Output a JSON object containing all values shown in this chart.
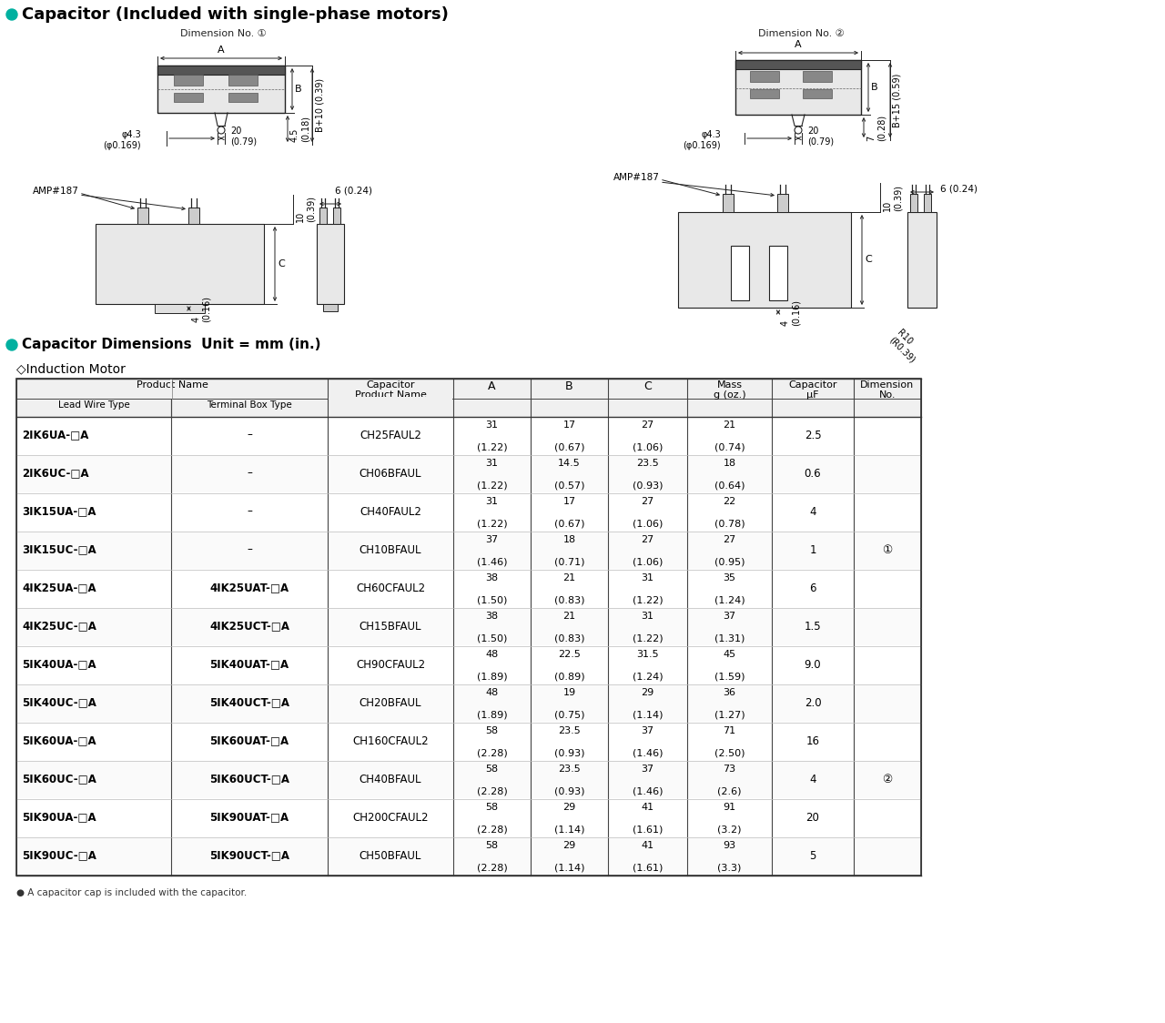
{
  "title": "Capacitor (Included with single-phase motors)",
  "title_bullet_color": "#00b0a0",
  "bg_color": "#ffffff",
  "dim1_label": "Dimension No. ①",
  "dim2_label": "Dimension No. ②",
  "table_title": "Capacitor Dimensions  Unit = mm (in.)",
  "table_subtitle": "◇Induction Motor",
  "table_note": "● A capacitor cap is included with the capacitor.",
  "rows": [
    {
      "lead": "2IK6UA-□A",
      "terminal": "–",
      "cap": "CH25FAUL2",
      "A": "31\n(1.22)",
      "B": "17\n(0.67)",
      "C": "27\n(1.06)",
      "mass": "21\n(0.74)",
      "uf": "2.5",
      "dim": ""
    },
    {
      "lead": "2IK6UC-□A",
      "terminal": "–",
      "cap": "CH06BFAUL",
      "A": "31\n(1.22)",
      "B": "14.5\n(0.57)",
      "C": "23.5\n(0.93)",
      "mass": "18\n(0.64)",
      "uf": "0.6",
      "dim": ""
    },
    {
      "lead": "3IK15UA-□A",
      "terminal": "–",
      "cap": "CH40FAUL2",
      "A": "31\n(1.22)",
      "B": "17\n(0.67)",
      "C": "27\n(1.06)",
      "mass": "22\n(0.78)",
      "uf": "4",
      "dim": ""
    },
    {
      "lead": "3IK15UC-□A",
      "terminal": "–",
      "cap": "CH10BFAUL",
      "A": "37\n(1.46)",
      "B": "18\n(0.71)",
      "C": "27\n(1.06)",
      "mass": "27\n(0.95)",
      "uf": "1",
      "dim": "①"
    },
    {
      "lead": "4IK25UA-□A",
      "terminal": "4IK25UAT-□A",
      "cap": "CH60CFAUL2",
      "A": "38\n(1.50)",
      "B": "21\n(0.83)",
      "C": "31\n(1.22)",
      "mass": "35\n(1.24)",
      "uf": "6",
      "dim": ""
    },
    {
      "lead": "4IK25UC-□A",
      "terminal": "4IK25UCT-□A",
      "cap": "CH15BFAUL",
      "A": "38\n(1.50)",
      "B": "21\n(0.83)",
      "C": "31\n(1.22)",
      "mass": "37\n(1.31)",
      "uf": "1.5",
      "dim": ""
    },
    {
      "lead": "5IK40UA-□A",
      "terminal": "5IK40UAT-□A",
      "cap": "CH90CFAUL2",
      "A": "48\n(1.89)",
      "B": "22.5\n(0.89)",
      "C": "31.5\n(1.24)",
      "mass": "45\n(1.59)",
      "uf": "9.0",
      "dim": ""
    },
    {
      "lead": "5IK40UC-□A",
      "terminal": "5IK40UCT-□A",
      "cap": "CH20BFAUL",
      "A": "48\n(1.89)",
      "B": "19\n(0.75)",
      "C": "29\n(1.14)",
      "mass": "36\n(1.27)",
      "uf": "2.0",
      "dim": ""
    },
    {
      "lead": "5IK60UA-□A",
      "terminal": "5IK60UAT-□A",
      "cap": "CH160CFAUL2",
      "A": "58\n(2.28)",
      "B": "23.5\n(0.93)",
      "C": "37\n(1.46)",
      "mass": "71\n(2.50)",
      "uf": "16",
      "dim": ""
    },
    {
      "lead": "5IK60UC-□A",
      "terminal": "5IK60UCT-□A",
      "cap": "CH40BFAUL",
      "A": "58\n(2.28)",
      "B": "23.5\n(0.93)",
      "C": "37\n(1.46)",
      "mass": "73\n(2.6)",
      "uf": "4",
      "dim": "②"
    },
    {
      "lead": "5IK90UA-□A",
      "terminal": "5IK90UAT-□A",
      "cap": "CH200CFAUL2",
      "A": "58\n(2.28)",
      "B": "29\n(1.14)",
      "C": "41\n(1.61)",
      "mass": "91\n(3.2)",
      "uf": "20",
      "dim": ""
    },
    {
      "lead": "5IK90UC-□A",
      "terminal": "5IK90UCT-□A",
      "cap": "CH50BFAUL",
      "A": "58\n(2.28)",
      "B": "29\n(1.14)",
      "C": "41\n(1.61)",
      "mass": "93\n(3.3)",
      "uf": "5",
      "dim": ""
    }
  ]
}
